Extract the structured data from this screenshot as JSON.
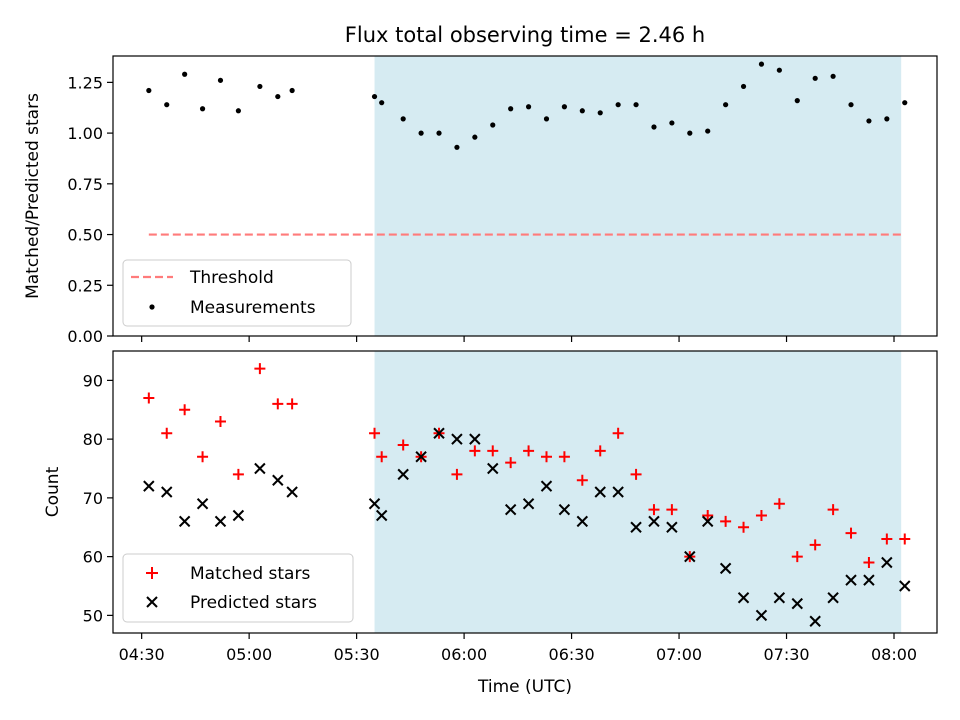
{
  "figure": {
    "title": "Flux total observing time = 2.46 h",
    "xlabel": "Time (UTC)"
  },
  "chart_data": [
    {
      "type": "scatter",
      "panel": "top",
      "ylabel": "Matched/Predicted stars",
      "ylim": [
        0.0,
        1.38
      ],
      "xlim": [
        "04:22",
        "08:12"
      ],
      "y_ticks": [
        "0.00",
        "0.25",
        "0.50",
        "0.75",
        "1.00",
        "1.25"
      ],
      "shaded_region": {
        "from": "05:35",
        "to": "08:02",
        "color": "#add8e6"
      },
      "threshold": {
        "name": "Threshold",
        "value": 0.5,
        "from": "04:32",
        "to": "08:02",
        "color": "#ff7b7b",
        "style": "dashed"
      },
      "legend": {
        "placement": "lower-left",
        "entries": [
          "Threshold",
          "Measurements"
        ]
      },
      "series": [
        {
          "name": "Measurements",
          "marker": "dot",
          "color": "#000000",
          "x": [
            "04:32",
            "04:37",
            "04:42",
            "04:47",
            "04:52",
            "04:57",
            "05:03",
            "05:08",
            "05:12",
            "05:35",
            "05:37",
            "05:43",
            "05:48",
            "05:53",
            "05:58",
            "06:03",
            "06:08",
            "06:13",
            "06:18",
            "06:23",
            "06:28",
            "06:33",
            "06:38",
            "06:43",
            "06:48",
            "06:53",
            "06:58",
            "07:03",
            "07:08",
            "07:13",
            "07:18",
            "07:23",
            "07:28",
            "07:33",
            "07:38",
            "07:43",
            "07:48",
            "07:53",
            "07:58",
            "08:03"
          ],
          "y": [
            1.21,
            1.14,
            1.29,
            1.12,
            1.26,
            1.11,
            1.23,
            1.18,
            1.21,
            1.18,
            1.15,
            1.07,
            1.0,
            1.0,
            0.93,
            0.98,
            1.04,
            1.12,
            1.13,
            1.07,
            1.13,
            1.11,
            1.1,
            1.14,
            1.14,
            1.03,
            1.05,
            1.0,
            1.01,
            1.14,
            1.23,
            1.34,
            1.31,
            1.16,
            1.27,
            1.28,
            1.14,
            1.06,
            1.07,
            1.15
          ]
        }
      ]
    },
    {
      "type": "scatter",
      "panel": "bottom",
      "ylabel": "Count",
      "ylim": [
        47,
        95
      ],
      "xlim": [
        "04:22",
        "08:12"
      ],
      "y_ticks": [
        "50",
        "60",
        "70",
        "80",
        "90"
      ],
      "x_ticks": [
        "04:30",
        "05:00",
        "05:30",
        "06:00",
        "06:30",
        "07:00",
        "07:30",
        "08:00"
      ],
      "shaded_region": {
        "from": "05:35",
        "to": "08:02",
        "color": "#add8e6"
      },
      "legend": {
        "placement": "lower-left",
        "entries": [
          "Matched stars",
          "Predicted stars"
        ]
      },
      "series": [
        {
          "name": "Matched stars",
          "marker": "plus",
          "color": "#ff0000",
          "x": [
            "04:32",
            "04:37",
            "04:42",
            "04:47",
            "04:52",
            "04:57",
            "05:03",
            "05:08",
            "05:12",
            "05:35",
            "05:37",
            "05:43",
            "05:48",
            "05:53",
            "05:58",
            "06:03",
            "06:08",
            "06:13",
            "06:18",
            "06:23",
            "06:28",
            "06:33",
            "06:38",
            "06:43",
            "06:48",
            "06:53",
            "06:58",
            "07:03",
            "07:08",
            "07:13",
            "07:18",
            "07:23",
            "07:28",
            "07:33",
            "07:38",
            "07:43",
            "07:48",
            "07:53",
            "07:58",
            "08:03"
          ],
          "y": [
            87,
            81,
            85,
            77,
            83,
            74,
            92,
            86,
            86,
            81,
            77,
            79,
            77,
            81,
            74,
            78,
            78,
            76,
            78,
            77,
            77,
            73,
            78,
            81,
            74,
            68,
            68,
            60,
            67,
            66,
            65,
            67,
            69,
            60,
            62,
            68,
            64,
            59,
            63,
            63
          ]
        },
        {
          "name": "Predicted stars",
          "marker": "x",
          "color": "#000000",
          "x": [
            "04:32",
            "04:37",
            "04:42",
            "04:47",
            "04:52",
            "04:57",
            "05:03",
            "05:08",
            "05:12",
            "05:35",
            "05:37",
            "05:43",
            "05:48",
            "05:53",
            "05:58",
            "06:03",
            "06:08",
            "06:13",
            "06:18",
            "06:23",
            "06:28",
            "06:33",
            "06:38",
            "06:43",
            "06:48",
            "06:53",
            "06:58",
            "07:03",
            "07:08",
            "07:13",
            "07:18",
            "07:23",
            "07:28",
            "07:33",
            "07:38",
            "07:43",
            "07:48",
            "07:53",
            "07:58",
            "08:03"
          ],
          "y": [
            72,
            71,
            66,
            69,
            66,
            67,
            75,
            73,
            71,
            69,
            67,
            74,
            77,
            81,
            80,
            80,
            75,
            68,
            69,
            72,
            68,
            66,
            71,
            71,
            65,
            66,
            65,
            60,
            66,
            58,
            53,
            50,
            53,
            52,
            49,
            53,
            56,
            56,
            59,
            55
          ]
        }
      ]
    }
  ]
}
